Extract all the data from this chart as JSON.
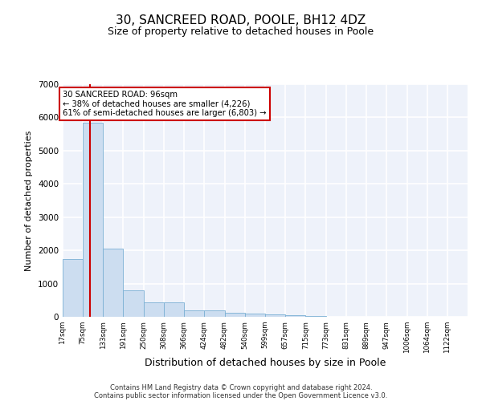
{
  "title": "30, SANCREED ROAD, POOLE, BH12 4DZ",
  "subtitle": "Size of property relative to detached houses in Poole",
  "xlabel": "Distribution of detached houses by size in Poole",
  "ylabel": "Number of detached properties",
  "footer_line1": "Contains HM Land Registry data © Crown copyright and database right 2024.",
  "footer_line2": "Contains public sector information licensed under the Open Government Licence v3.0.",
  "annotation_line1": "30 SANCREED ROAD: 96sqm",
  "annotation_line2": "← 38% of detached houses are smaller (4,226)",
  "annotation_line3": "61% of semi-detached houses are larger (6,803) →",
  "property_size": 96,
  "bin_edges": [
    17,
    75,
    133,
    191,
    250,
    308,
    366,
    424,
    482,
    540,
    599,
    657,
    715,
    773,
    831,
    889,
    947,
    1006,
    1064,
    1122,
    1180
  ],
  "bar_heights": [
    1750,
    5850,
    2050,
    800,
    430,
    440,
    200,
    185,
    120,
    100,
    75,
    55,
    25,
    5,
    3,
    2,
    2,
    1,
    1,
    1
  ],
  "bar_color": "#ccddf0",
  "bar_edge_color": "#7ab0d4",
  "vline_color": "#cc0000",
  "annotation_box_color": "#cc0000",
  "background_color": "#eef2fa",
  "ylim": [
    0,
    7000
  ],
  "yticks": [
    0,
    1000,
    2000,
    3000,
    4000,
    5000,
    6000,
    7000
  ],
  "grid_color": "#ffffff",
  "title_fontsize": 11,
  "subtitle_fontsize": 9,
  "xlabel_fontsize": 9,
  "ylabel_fontsize": 8
}
